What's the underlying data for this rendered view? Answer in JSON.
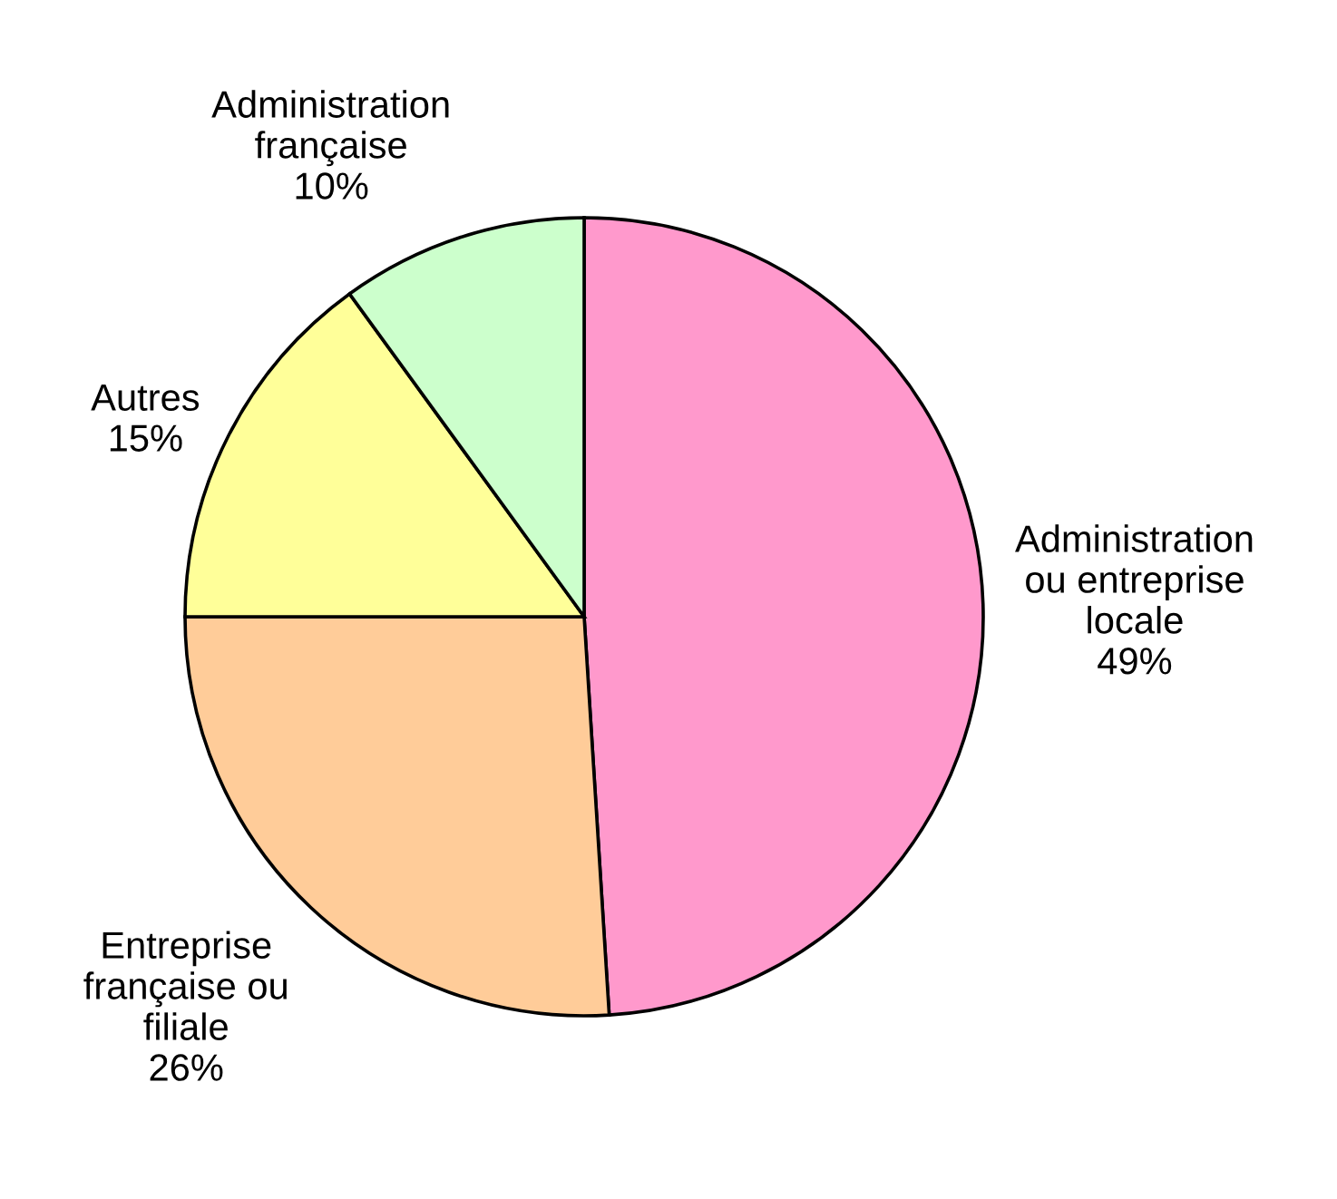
{
  "chart_data": {
    "type": "pie",
    "categories": [
      "Administration\nou entreprise\nlocale",
      "Entreprise\nfrançaise ou\nfiliale",
      "Autres",
      "Administration\nfrançaise"
    ],
    "values": [
      49,
      26,
      15,
      10
    ],
    "value_labels": [
      "49%",
      "26%",
      "15%",
      "10%"
    ],
    "colors": [
      "#ff99cc",
      "#ffcc99",
      "#ffff99",
      "#ccffcc"
    ]
  }
}
